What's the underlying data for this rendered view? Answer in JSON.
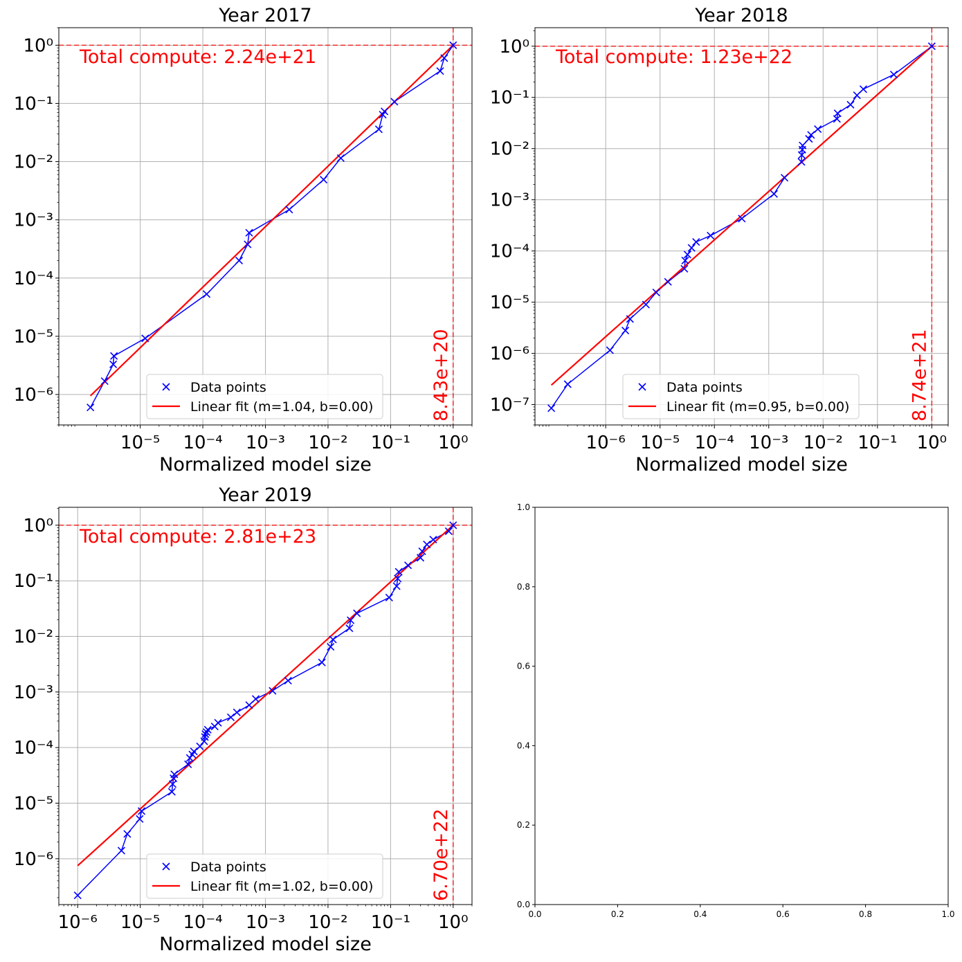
{
  "chart_data": [
    {
      "type": "scatter",
      "title": "Year 2017",
      "xlabel": "Normalized model size",
      "ylabel": "",
      "xscale": "log",
      "yscale": "log",
      "xlim": [
        5e-07,
        2
      ],
      "ylim": [
        3e-07,
        2
      ],
      "grid": true,
      "x_ticks": [
        1e-05,
        0.0001,
        0.001,
        0.01,
        0.1,
        1
      ],
      "y_ticks": [
        1e-06,
        1e-05,
        0.0001,
        0.001,
        0.01,
        0.1,
        1
      ],
      "legend_position": "lower-center",
      "series": [
        {
          "name": "Data points",
          "color": "#0000ff",
          "marker": "x",
          "connected": true,
          "x": [
            1.6e-06,
            2.7e-06,
            3.7e-06,
            3.8e-06,
            1.2e-05,
            0.000115,
            0.00038,
            0.00052,
            0.00055,
            0.0024,
            0.0085,
            0.016,
            0.065,
            0.075,
            0.08,
            0.115,
            0.62,
            0.72,
            1.0
          ],
          "y": [
            6e-07,
            1.7e-06,
            3.3e-06,
            4.6e-06,
            9.2e-06,
            5.3e-05,
            0.0002,
            0.00038,
            0.0006,
            0.0015,
            0.0049,
            0.0115,
            0.036,
            0.064,
            0.073,
            0.107,
            0.36,
            0.6,
            1.0
          ]
        },
        {
          "name": "Linear fit (m=1.04, b=0.00)",
          "color": "#ff0000",
          "marker": "line",
          "x": [
            1.6e-06,
            1.0
          ],
          "y": [
            9.5e-07,
            1.0
          ]
        }
      ],
      "annotations": [
        {
          "text": "Total compute: 2.24e+21",
          "color": "#ff0000"
        },
        {
          "text": "8.43e+20",
          "color": "#ff0000",
          "rotation": -90
        }
      ],
      "reference_lines": {
        "horizontal_y": 1.0,
        "vertical_x": 1.0,
        "style": "dashed",
        "color": "#ff0000"
      }
    },
    {
      "type": "scatter",
      "title": "Year 2018",
      "xlabel": "Normalized model size",
      "ylabel": "",
      "xscale": "log",
      "yscale": "log",
      "xlim": [
        5e-08,
        2
      ],
      "ylim": [
        4e-08,
        2.3
      ],
      "grid": true,
      "x_ticks": [
        1e-06,
        1e-05,
        0.0001,
        0.001,
        0.01,
        0.1,
        1
      ],
      "y_ticks": [
        1e-07,
        1e-06,
        1e-05,
        0.0001,
        0.001,
        0.01,
        0.1,
        1
      ],
      "legend_position": "lower-center",
      "series": [
        {
          "name": "Data points",
          "color": "#0000ff",
          "marker": "x",
          "connected": true,
          "x": [
            1e-07,
            2e-07,
            1.2e-06,
            2.3e-06,
            2.8e-06,
            5.5e-06,
            8.5e-06,
            1.4e-05,
            2.8e-05,
            2.9e-05,
            3.2e-05,
            3.8e-05,
            4.6e-05,
            8.5e-05,
            0.00032,
            0.00125,
            0.00195,
            0.004,
            0.00405,
            0.00415,
            0.0042,
            0.0055,
            0.006,
            0.008,
            0.018,
            0.0185,
            0.032,
            0.042,
            0.055,
            0.2,
            1.0
          ],
          "y": [
            8.5e-08,
            2.5e-07,
            1.15e-06,
            2.8e-06,
            4.7e-06,
            9e-06,
            1.55e-05,
            2.5e-05,
            4.5e-05,
            6.5e-05,
            8.5e-05,
            0.000115,
            0.00015,
            0.0002,
            0.00043,
            0.0013,
            0.0027,
            0.0055,
            0.0075,
            0.0095,
            0.0115,
            0.0155,
            0.0185,
            0.024,
            0.038,
            0.049,
            0.072,
            0.11,
            0.145,
            0.28,
            1.0
          ]
        },
        {
          "name": "Linear fit (m=0.95, b=0.00)",
          "color": "#ff0000",
          "marker": "line",
          "x": [
            1e-07,
            1.0
          ],
          "y": [
            2.4e-07,
            1.0
          ]
        }
      ],
      "annotations": [
        {
          "text": "Total compute: 1.23e+22",
          "color": "#ff0000"
        },
        {
          "text": "8.74e+21",
          "color": "#ff0000",
          "rotation": -90
        }
      ],
      "reference_lines": {
        "horizontal_y": 1.0,
        "vertical_x": 1.0,
        "style": "dashed",
        "color": "#ff0000"
      }
    },
    {
      "type": "scatter",
      "title": "Year 2019",
      "xlabel": "Normalized model size",
      "ylabel": "",
      "xscale": "log",
      "yscale": "log",
      "xlim": [
        5e-07,
        2
      ],
      "ylim": [
        1.5e-07,
        2.1
      ],
      "grid": true,
      "x_ticks": [
        1e-06,
        1e-05,
        0.0001,
        0.001,
        0.01,
        0.1,
        1
      ],
      "y_ticks": [
        1e-06,
        1e-05,
        0.0001,
        0.001,
        0.01,
        0.1,
        1
      ],
      "legend_position": "lower-center",
      "series": [
        {
          "name": "Data points",
          "color": "#0000ff",
          "marker": "x",
          "connected": true,
          "x": [
            1e-06,
            5e-06,
            6.2e-06,
            9.8e-06,
            1.05e-05,
            3.2e-05,
            3.3e-05,
            3.4e-05,
            3.5e-05,
            5.8e-05,
            6.2e-05,
            6.8e-05,
            7.2e-05,
            9e-05,
            0.000105,
            0.000108,
            0.00011,
            0.000115,
            0.00012,
            0.000155,
            0.000175,
            0.00028,
            0.00035,
            0.00055,
            0.0007,
            0.0013,
            0.0023,
            0.008,
            0.011,
            0.012,
            0.022,
            0.023,
            0.029,
            0.095,
            0.125,
            0.13,
            0.135,
            0.19,
            0.3,
            0.32,
            0.38,
            0.48,
            0.85,
            1.0
          ],
          "y": [
            2.2e-07,
            1.4e-06,
            2.8e-06,
            5.2e-06,
            7.2e-06,
            1.6e-05,
            2.2e-05,
            2.8e-05,
            3.3e-05,
            5e-05,
            6.5e-05,
            7.5e-05,
            8.5e-05,
            0.000105,
            0.00013,
            0.000155,
            0.000175,
            0.00019,
            0.00021,
            0.00024,
            0.00028,
            0.00035,
            0.00043,
            0.00058,
            0.00075,
            0.00105,
            0.0016,
            0.0034,
            0.0065,
            0.0088,
            0.014,
            0.0195,
            0.026,
            0.05,
            0.08,
            0.11,
            0.145,
            0.19,
            0.26,
            0.34,
            0.45,
            0.55,
            0.78,
            1.0
          ]
        },
        {
          "name": "Linear fit (m=1.02, b=0.00)",
          "color": "#ff0000",
          "marker": "line",
          "x": [
            1e-06,
            1.0
          ],
          "y": [
            7.5e-07,
            1.0
          ]
        }
      ],
      "annotations": [
        {
          "text": "Total compute: 2.81e+23",
          "color": "#ff0000"
        },
        {
          "text": "6.70e+22",
          "color": "#ff0000",
          "rotation": -90
        }
      ],
      "reference_lines": {
        "horizontal_y": 1.0,
        "vertical_x": 1.0,
        "style": "dashed",
        "color": "#ff0000"
      }
    },
    {
      "type": "scatter",
      "title": "",
      "xlabel": "",
      "ylabel": "",
      "xscale": "linear",
      "yscale": "linear",
      "xlim": [
        0,
        1
      ],
      "ylim": [
        0,
        1
      ],
      "grid": false,
      "x_tick_labels": [
        "0.0",
        "0.2",
        "0.4",
        "0.6",
        "0.8",
        "1.0"
      ],
      "y_tick_labels": [
        "0.0",
        "0.2",
        "0.4",
        "0.6",
        "0.8",
        "1.0"
      ],
      "series": []
    }
  ]
}
